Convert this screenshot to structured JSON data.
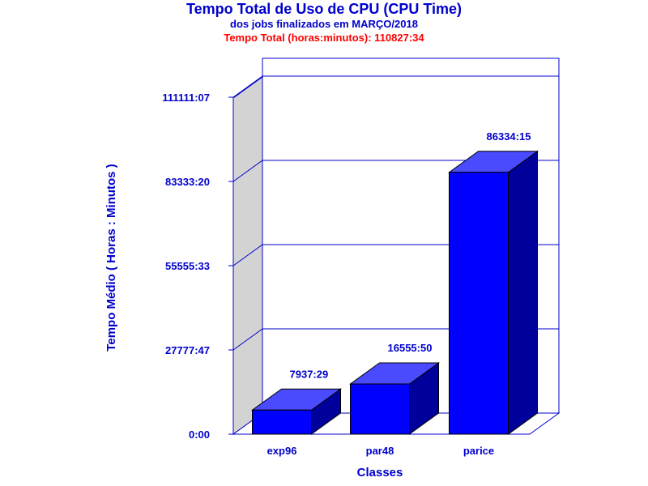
{
  "chart_data": {
    "type": "bar",
    "title": "Tempo Total de Uso de CPU (CPU Time)",
    "subtitle": "dos jobs finalizados em MARÇO/2018",
    "subtitle2": "Tempo Total (horas:minutos): 110827:34",
    "xlabel": "Classes",
    "ylabel": "Tempo Médio ( Horas : Minutos )",
    "categories": [
      "exp96",
      "par48",
      "parice"
    ],
    "values": [
      7937.48,
      16555.83,
      86334.25
    ],
    "value_labels": [
      "7937:29",
      "16555:50",
      "86334:15"
    ],
    "ylim": [
      0,
      111111.12
    ],
    "yticks": [
      0,
      27777.78,
      55555.55,
      83333.33,
      111111.12
    ],
    "ytick_labels": [
      "0:00",
      "27777:47",
      "55555:33",
      "83333:20",
      "111111:07"
    ],
    "grid": true,
    "legend": "none"
  },
  "colors": {
    "text": "#0000cc",
    "subtitle2": "#ff0000",
    "bar_front": "#0000ff",
    "bar_top": "#4a4aff",
    "bar_side": "#00009a",
    "frame": "#0000cc",
    "left_wall": "#d3d3d3"
  }
}
